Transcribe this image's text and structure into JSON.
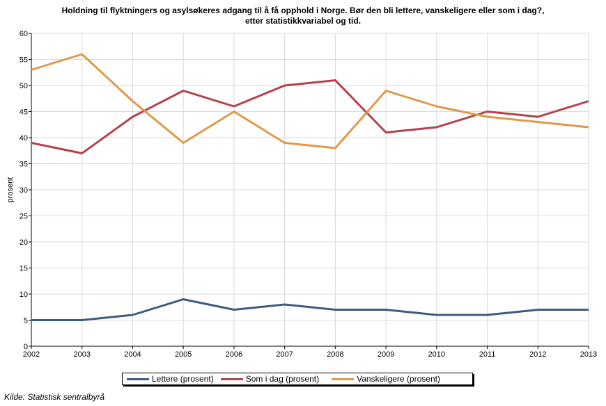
{
  "chart_data": {
    "type": "line",
    "title": "Holdning til flyktningers og asylsøkeres adgang til å få opphold i Norge. Bør den bli lettere, vanskeligere eller som i dag?,",
    "subtitle": "etter statistikkvariabel og tid.",
    "ylabel": "prosent",
    "xlabel": "",
    "categories": [
      "2002",
      "2003",
      "2004",
      "2005",
      "2006",
      "2007",
      "2008",
      "2009",
      "2010",
      "2011",
      "2012",
      "2013"
    ],
    "ylim": [
      0,
      60
    ],
    "yticks": [
      0,
      5,
      10,
      15,
      20,
      25,
      30,
      35,
      40,
      45,
      50,
      55,
      60
    ],
    "grid": true,
    "legend_position": "bottom",
    "series": [
      {
        "name": "Lettere (prosent)",
        "color": "#3f5a82",
        "values": [
          5,
          5,
          6,
          9,
          7,
          8,
          7,
          7,
          6,
          6,
          7,
          7
        ]
      },
      {
        "name": "Som i dag (prosent)",
        "color": "#b5404c",
        "values": [
          39,
          37,
          44,
          49,
          46,
          50,
          51,
          41,
          42,
          45,
          44,
          47
        ]
      },
      {
        "name": "Vanskeligere (prosent)",
        "color": "#e0994a",
        "values": [
          53,
          56,
          47,
          39,
          45,
          39,
          38,
          49,
          46,
          44,
          43,
          42
        ]
      }
    ]
  },
  "source": "Kilde: Statistisk sentralbyrå"
}
